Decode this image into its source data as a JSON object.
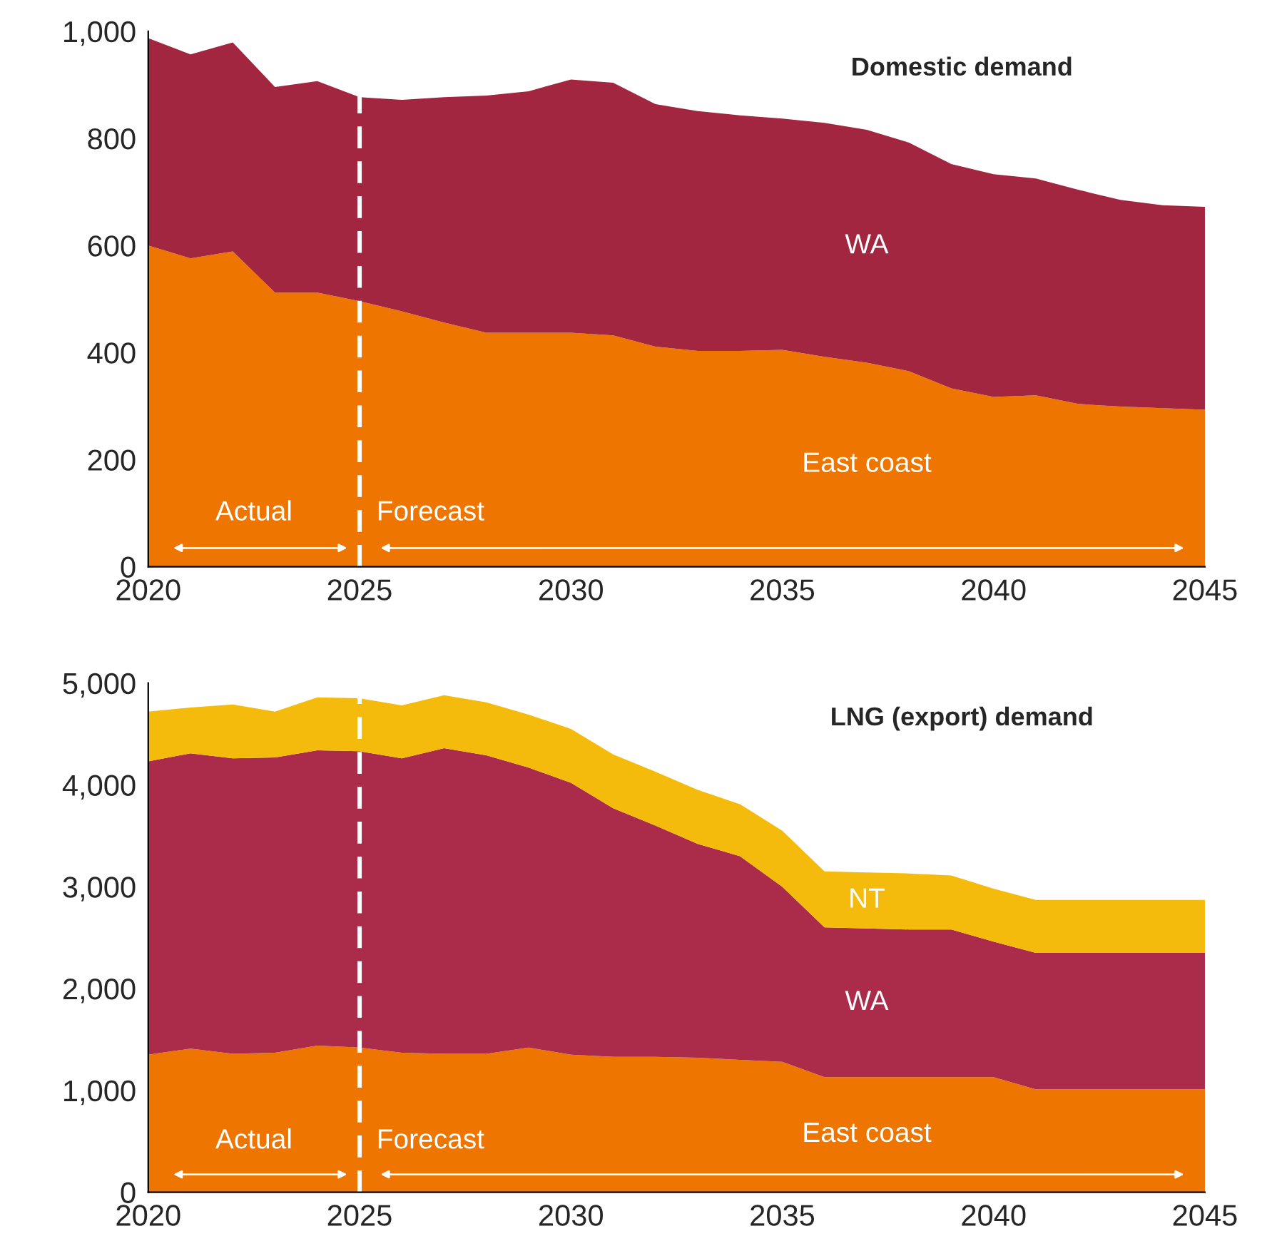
{
  "chart_data": [
    {
      "type": "area",
      "title": "Domestic demand",
      "stacked": true,
      "x": [
        2020,
        2021,
        2022,
        2023,
        2024,
        2025,
        2026,
        2027,
        2028,
        2029,
        2030,
        2031,
        2032,
        2033,
        2034,
        2035,
        2036,
        2037,
        2038,
        2039,
        2040,
        2041,
        2042,
        2043,
        2044,
        2045
      ],
      "series": [
        {
          "name": "East coast",
          "color": "#ee7600",
          "values": [
            600,
            576,
            589,
            512,
            512,
            496,
            477,
            456,
            437,
            437,
            437,
            432,
            411,
            403,
            403,
            405,
            392,
            381,
            365,
            333,
            317,
            320,
            304,
            299,
            296,
            293
          ]
        },
        {
          "name": "WA",
          "color": "#a22640",
          "values": [
            387,
            381,
            390,
            384,
            395,
            381,
            395,
            421,
            443,
            451,
            473,
            472,
            453,
            448,
            440,
            432,
            437,
            435,
            427,
            419,
            416,
            405,
            400,
            386,
            379,
            379
          ]
        }
      ],
      "xlim": [
        2020,
        2045
      ],
      "xticks": [
        2020,
        2025,
        2030,
        2035,
        2040,
        2045
      ],
      "ylim": [
        0,
        1000
      ],
      "yticks": [
        0,
        200,
        400,
        600,
        800,
        {
          "value": 1000,
          "label": "1,000"
        }
      ],
      "ref_lines": [
        {
          "axis": "x",
          "value": 2025,
          "color": "#ffffff",
          "line_style": "dashed"
        }
      ],
      "annotations": [
        "Actual",
        "Forecast"
      ],
      "grid": false,
      "legend": false
    },
    {
      "type": "area",
      "title": "LNG (export) demand",
      "stacked": true,
      "x": [
        2020,
        2021,
        2022,
        2023,
        2024,
        2025,
        2026,
        2027,
        2028,
        2029,
        2030,
        2031,
        2032,
        2033,
        2034,
        2035,
        2036,
        2037,
        2038,
        2039,
        2040,
        2041,
        2042,
        2043,
        2044,
        2045
      ],
      "series": [
        {
          "name": "East coast",
          "color": "#ee7600",
          "values": [
            1350,
            1410,
            1360,
            1370,
            1440,
            1420,
            1370,
            1360,
            1360,
            1420,
            1350,
            1330,
            1330,
            1320,
            1300,
            1280,
            1130,
            1130,
            1130,
            1130,
            1130,
            1010,
            1010,
            1010,
            1010,
            1010
          ]
        },
        {
          "name": "WA",
          "color": "#ab2b4a",
          "values": [
            2880,
            2900,
            2900,
            2900,
            2900,
            2910,
            2890,
            3000,
            2930,
            2750,
            2670,
            2440,
            2270,
            2100,
            2000,
            1720,
            1470,
            1460,
            1450,
            1450,
            1330,
            1340,
            1340,
            1340,
            1340,
            1340
          ]
        },
        {
          "name": "NT",
          "color": "#f5bb0c",
          "values": [
            490,
            450,
            530,
            450,
            520,
            520,
            520,
            520,
            520,
            520,
            530,
            530,
            530,
            530,
            510,
            550,
            550,
            550,
            550,
            530,
            520,
            520,
            520,
            520,
            520,
            520
          ]
        }
      ],
      "xlim": [
        2020,
        2045
      ],
      "xticks": [
        2020,
        2025,
        2030,
        2035,
        2040,
        2045
      ],
      "ylim": [
        0,
        5000
      ],
      "yticks": [
        0,
        {
          "value": 1000,
          "label": "1,000"
        },
        {
          "value": 2000,
          "label": "2,000"
        },
        {
          "value": 3000,
          "label": "3,000"
        },
        {
          "value": 4000,
          "label": "4,000"
        },
        {
          "value": 5000,
          "label": "5,000"
        }
      ],
      "ref_lines": [
        {
          "axis": "x",
          "value": 2025,
          "color": "#ffffff",
          "line_style": "dashed"
        }
      ],
      "annotations": [
        "Actual",
        "Forecast"
      ],
      "grid": false,
      "legend": false
    }
  ]
}
